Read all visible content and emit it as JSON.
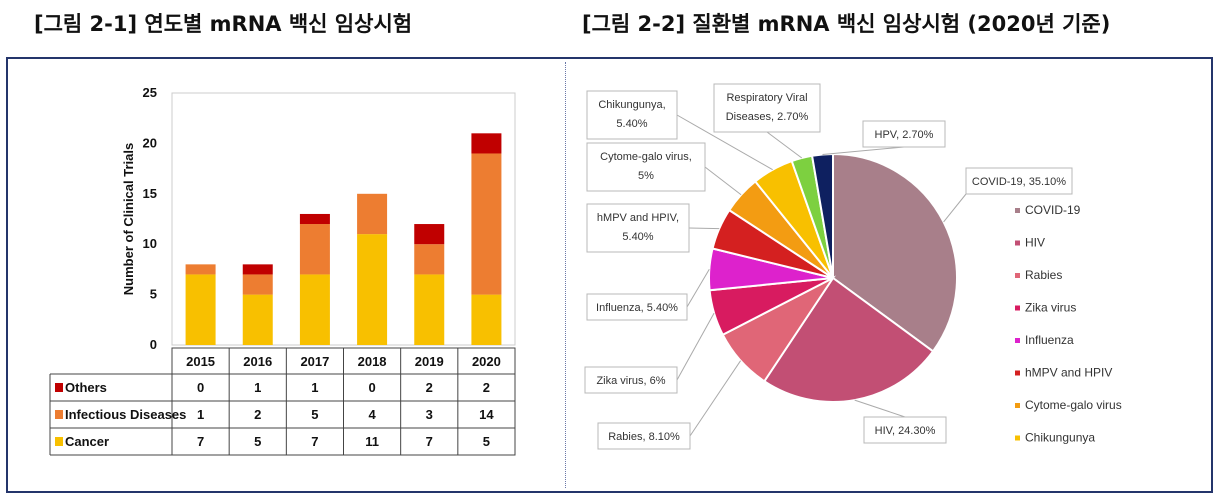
{
  "headings": {
    "left": "[그림 2-1] 연도별 mRNA 백신 임상시험",
    "right": "[그림 2-2] 질환별 mRNA 백신 임상시험 (2020년 기준)"
  },
  "chart_data": [
    {
      "type": "bar",
      "stacked": true,
      "categories": [
        "2015",
        "2016",
        "2017",
        "2018",
        "2019",
        "2020"
      ],
      "series": [
        {
          "name": "Cancer",
          "values": [
            7,
            5,
            7,
            11,
            7,
            5
          ],
          "color": "#f8c000"
        },
        {
          "name": "Infectious Diseases",
          "values": [
            1,
            2,
            5,
            4,
            3,
            14
          ],
          "color": "#ed7d31"
        },
        {
          "name": "Others",
          "values": [
            0,
            1,
            1,
            0,
            2,
            2
          ],
          "color": "#c00000"
        }
      ],
      "ylabel": "Number of Clinical Trials",
      "ylim": [
        0,
        25
      ],
      "yticks": [
        0,
        5,
        10,
        15,
        20,
        25
      ],
      "grid": false,
      "data_table": true
    },
    {
      "type": "pie",
      "slices": [
        {
          "name": "COVID-19",
          "value": 35.1,
          "label": "COVID-19, 35.10%",
          "color": "#a87f8a"
        },
        {
          "name": "HIV",
          "value": 24.3,
          "label": "HIV, 24.30%",
          "color": "#c24f74"
        },
        {
          "name": "Rabies",
          "value": 8.1,
          "label": "Rabies, 8.10%",
          "color": "#e06677"
        },
        {
          "name": "Zika virus",
          "value": 6,
          "label": "Zika virus, 6%",
          "color": "#d81b60"
        },
        {
          "name": "Influenza",
          "value": 5.4,
          "label": "Influenza, 5.40%",
          "color": "#dd22cc"
        },
        {
          "name": "hMPV and HPIV",
          "value": 5.4,
          "label": "hMPV and HPIV,\n5.40%",
          "color": "#d42020"
        },
        {
          "name": "Cytome-galo virus",
          "value": 5,
          "label": "Cytome-galo virus,\n5%",
          "color": "#f39c12"
        },
        {
          "name": "Chikungunya",
          "value": 5.4,
          "label": "Chikungunya,\n5.40%",
          "color": "#f8c000"
        },
        {
          "name": "Respiratory Viral Diseases",
          "value": 2.7,
          "label": "Respiratory Viral\nDiseases, 2.70%",
          "color": "#7dd040"
        },
        {
          "name": "HPV",
          "value": 2.7,
          "label": "HPV, 2.70%",
          "color": "#0e2060"
        }
      ],
      "legend_position": "right",
      "legend_items": [
        "COVID-19",
        "HIV",
        "Rabies",
        "Zika virus",
        "Influenza",
        "hMPV and HPIV",
        "Cytome-galo virus",
        "Chikungunya"
      ]
    }
  ]
}
